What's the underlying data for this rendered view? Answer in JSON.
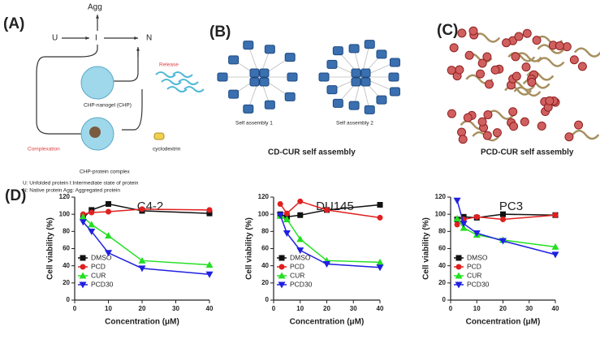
{
  "panels": {
    "a": {
      "label": "(A)",
      "agg": "Agg",
      "u": "U",
      "i": "I",
      "n": "N",
      "release": "Release",
      "nanogel": "CHP-nanogel (CHP)",
      "complexation": "Complexation",
      "cyclodextrin": "cyclodextrin",
      "complex": "CHP-protein complex",
      "note1": "U: Unfolded protein I:Intermediate state of protein",
      "note2": "N: Native protein Agg: Aggregated protein"
    },
    "b": {
      "label": "(B)",
      "sa1": "Self assembly 1",
      "sa2": "Self assembly 2",
      "caption": "CD-CUR self assembly"
    },
    "c": {
      "label": "(C)",
      "caption": "PCD-CUR self assembly"
    },
    "d": {
      "label": "(D)"
    }
  },
  "chart_data": [
    {
      "type": "line",
      "title": "C4-2",
      "x_label": "Concentration (μM)",
      "y_label": "Cell viability (%)",
      "x": [
        2.5,
        5,
        10,
        20,
        40
      ],
      "xlim": [
        0,
        40
      ],
      "xticks": [
        0,
        10,
        20,
        30,
        40
      ],
      "ylim": [
        0,
        120
      ],
      "yticks": [
        0,
        20,
        40,
        60,
        80,
        100,
        120
      ],
      "series": [
        {
          "name": "DMSO",
          "color": "#111111",
          "marker": "square",
          "values": [
            96,
            105,
            112,
            104,
            101
          ]
        },
        {
          "name": "PCD",
          "color": "#e02020",
          "marker": "circle",
          "values": [
            100,
            102,
            103,
            106,
            105
          ]
        },
        {
          "name": "CUR",
          "color": "#22e022",
          "marker": "triangle-up",
          "values": [
            97,
            88,
            75,
            46,
            41
          ]
        },
        {
          "name": "PCD30",
          "color": "#2020e0",
          "marker": "triangle-down",
          "values": [
            91,
            80,
            55,
            37,
            30
          ]
        }
      ]
    },
    {
      "type": "line",
      "title": "DU145",
      "x_label": "Concentration (μM)",
      "y_label": "Cell viability (%)",
      "x": [
        2.5,
        5,
        10,
        20,
        40
      ],
      "xlim": [
        0,
        40
      ],
      "xticks": [
        0,
        10,
        20,
        30,
        40
      ],
      "ylim": [
        0,
        120
      ],
      "yticks": [
        0,
        20,
        40,
        60,
        80,
        100,
        120
      ],
      "series": [
        {
          "name": "DMSO",
          "color": "#111111",
          "marker": "square",
          "values": [
            100,
            97,
            99,
            105,
            111
          ]
        },
        {
          "name": "PCD",
          "color": "#e02020",
          "marker": "circle",
          "values": [
            112,
            101,
            115,
            105,
            96
          ]
        },
        {
          "name": "CUR",
          "color": "#22e022",
          "marker": "triangle-up",
          "values": [
            98,
            94,
            71,
            46,
            44
          ]
        },
        {
          "name": "PCD30",
          "color": "#2020e0",
          "marker": "triangle-down",
          "values": [
            99,
            78,
            58,
            42,
            38
          ]
        }
      ]
    },
    {
      "type": "line",
      "title": "PC3",
      "x_label": "Concentration (μM)",
      "y_label": "Cell viability (%)",
      "x": [
        2.5,
        5,
        10,
        20,
        40
      ],
      "xlim": [
        0,
        40
      ],
      "xticks": [
        0,
        10,
        20,
        30,
        40
      ],
      "ylim": [
        0,
        120
      ],
      "yticks": [
        0,
        20,
        40,
        60,
        80,
        100,
        120
      ],
      "series": [
        {
          "name": "DMSO",
          "color": "#111111",
          "marker": "square",
          "values": [
            94,
            97,
            96,
            100,
            99
          ]
        },
        {
          "name": "PCD",
          "color": "#e02020",
          "marker": "circle",
          "values": [
            88,
            94,
            97,
            94,
            99
          ]
        },
        {
          "name": "CUR",
          "color": "#22e022",
          "marker": "triangle-up",
          "values": [
            95,
            84,
            76,
            70,
            62
          ]
        },
        {
          "name": "PCD30",
          "color": "#2020e0",
          "marker": "triangle-down",
          "values": [
            116,
            89,
            78,
            69,
            53
          ]
        }
      ]
    }
  ]
}
